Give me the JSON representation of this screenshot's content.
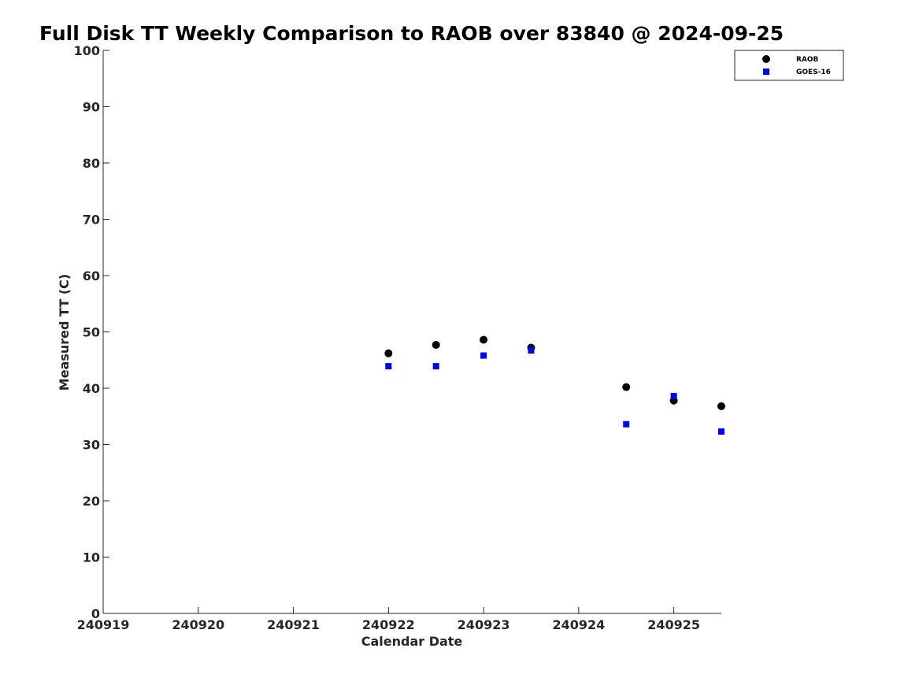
{
  "chart_data": {
    "type": "scatter",
    "title": "Full Disk TT Weekly Comparison to RAOB over 83840 @ 2024-09-25",
    "xlabel": "Calendar Date",
    "ylabel": "Measured TT (C)",
    "xlim": [
      240919,
      240925.5
    ],
    "ylim": [
      0,
      100
    ],
    "xticks": [
      "240919",
      "240920",
      "240921",
      "240922",
      "240923",
      "240924",
      "240925"
    ],
    "yticks": [
      "0",
      "10",
      "20",
      "30",
      "40",
      "50",
      "60",
      "70",
      "80",
      "90",
      "100"
    ],
    "grid": false,
    "legend_position": "top-right",
    "series": [
      {
        "name": "RAOB",
        "marker": "circle",
        "color": "#000000",
        "x": [
          240922.0,
          240922.5,
          240923.0,
          240923.5,
          240924.5,
          240925.0,
          240925.5
        ],
        "y": [
          46.2,
          47.7,
          48.6,
          47.2,
          40.2,
          37.8,
          36.8
        ]
      },
      {
        "name": "GOES-16",
        "marker": "square",
        "color": "#0000ff",
        "x": [
          240922.0,
          240922.5,
          240923.0,
          240923.5,
          240924.5,
          240925.0,
          240925.5
        ],
        "y": [
          43.9,
          43.9,
          45.8,
          46.7,
          33.6,
          38.6,
          32.3
        ]
      }
    ]
  }
}
